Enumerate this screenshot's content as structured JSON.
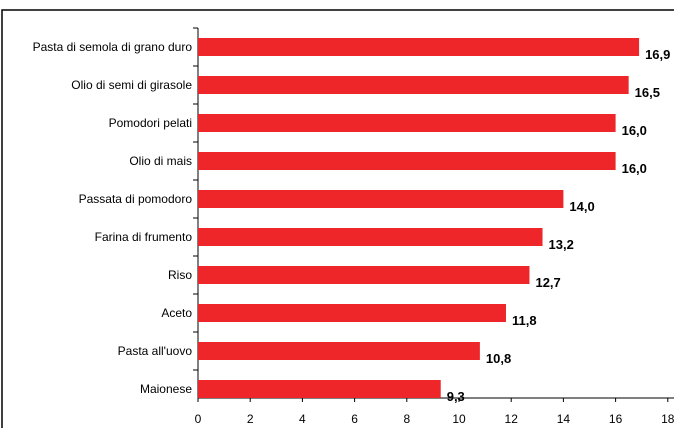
{
  "chart_data": {
    "type": "bar",
    "orientation": "horizontal",
    "categories": [
      "Pasta di semola di grano duro",
      "Olio di semi di girasole",
      "Pomodori pelati",
      "Olio di mais",
      "Passata di pomodoro",
      "Farina di frumento",
      "Riso",
      "Aceto",
      "Pasta all'uovo",
      "Maionese"
    ],
    "values": [
      16.9,
      16.5,
      16.0,
      16.0,
      14.0,
      13.2,
      12.7,
      11.8,
      10.8,
      9.3
    ],
    "value_labels": [
      "16,9",
      "16,5",
      "16,0",
      "16,0",
      "14,0",
      "13,2",
      "12,7",
      "11,8",
      "10,8",
      "9,3"
    ],
    "xlim": [
      0,
      18
    ],
    "xticks": [
      0,
      2,
      4,
      6,
      8,
      10,
      12,
      14,
      16,
      18
    ],
    "grid": false,
    "legend": "none",
    "bar_color": "#ee2529"
  }
}
